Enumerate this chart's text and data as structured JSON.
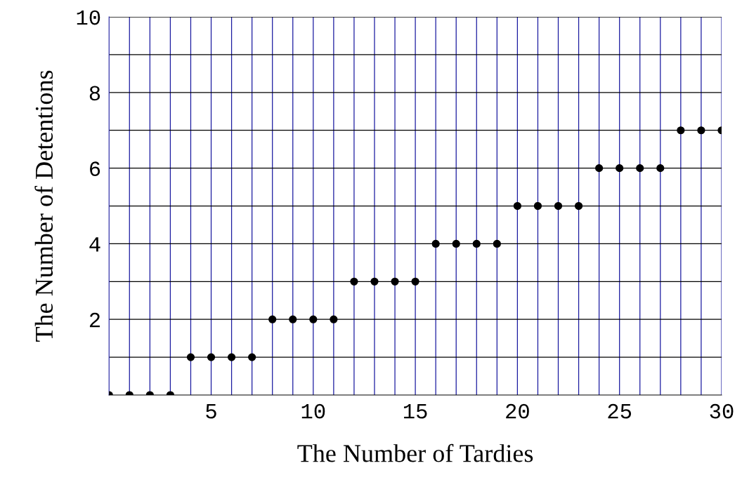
{
  "chart_data": {
    "type": "scatter",
    "xlabel": "The Number of Tardies",
    "ylabel": "The Number of Detentions",
    "x": [
      0,
      1,
      2,
      3,
      4,
      5,
      6,
      7,
      8,
      9,
      10,
      11,
      12,
      13,
      14,
      15,
      16,
      17,
      18,
      19,
      20,
      21,
      22,
      23,
      24,
      25,
      26,
      27,
      28,
      29,
      30
    ],
    "values": [
      0,
      0,
      0,
      0,
      1,
      1,
      1,
      1,
      2,
      2,
      2,
      2,
      3,
      3,
      3,
      3,
      4,
      4,
      4,
      4,
      5,
      5,
      5,
      5,
      6,
      6,
      6,
      6,
      7,
      7,
      7
    ],
    "color": "#000000",
    "marker": "circle",
    "xlim": [
      0,
      30
    ],
    "ylim": [
      0,
      10
    ],
    "xticks": [
      {
        "value": 1,
        "label": null
      },
      {
        "value": 2,
        "label": null
      },
      {
        "value": 3,
        "label": null
      },
      {
        "value": 4,
        "label": null
      },
      5,
      {
        "value": 6,
        "label": null
      },
      {
        "value": 7,
        "label": null
      },
      {
        "value": 8,
        "label": null
      },
      {
        "value": 9,
        "label": null
      },
      10,
      {
        "value": 11,
        "label": null
      },
      {
        "value": 12,
        "label": null
      },
      {
        "value": 13,
        "label": null
      },
      {
        "value": 14,
        "label": null
      },
      15,
      {
        "value": 16,
        "label": null
      },
      {
        "value": 17,
        "label": null
      },
      {
        "value": 18,
        "label": null
      },
      {
        "value": 19,
        "label": null
      },
      20,
      {
        "value": 21,
        "label": null
      },
      {
        "value": 22,
        "label": null
      },
      {
        "value": 23,
        "label": null
      },
      {
        "value": 24,
        "label": null
      },
      25,
      {
        "value": 26,
        "label": null
      },
      {
        "value": 27,
        "label": null
      },
      {
        "value": 28,
        "label": null
      },
      {
        "value": 29,
        "label": null
      },
      30
    ],
    "yticks": [
      {
        "value": 1,
        "label": null
      },
      2,
      {
        "value": 3,
        "label": null
      },
      4,
      {
        "value": 5,
        "label": null
      },
      6,
      {
        "value": 7,
        "label": null
      },
      8,
      {
        "value": 9,
        "label": null
      },
      10
    ],
    "grid": true
  }
}
